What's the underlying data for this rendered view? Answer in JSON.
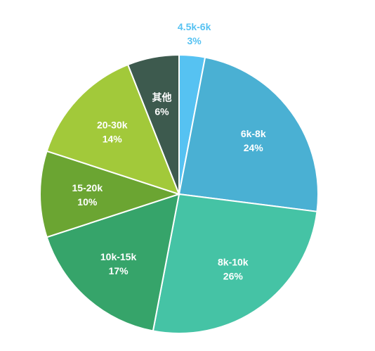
{
  "chart_data": {
    "type": "pie",
    "slices": [
      {
        "label": "4.5k-6k",
        "value": 3,
        "pct_label": "3%",
        "color": "#56c2f2"
      },
      {
        "label": "6k-8k",
        "value": 24,
        "pct_label": "24%",
        "color": "#4ab0d3"
      },
      {
        "label": "8k-10k",
        "value": 26,
        "pct_label": "26%",
        "color": "#45c3a5"
      },
      {
        "label": "10k-15k",
        "value": 17,
        "pct_label": "17%",
        "color": "#36a46a"
      },
      {
        "label": "15-20k",
        "value": 10,
        "pct_label": "10%",
        "color": "#6ba532"
      },
      {
        "label": "20-30k",
        "value": 14,
        "pct_label": "14%",
        "color": "#a2c93a"
      },
      {
        "label": "其他",
        "value": 6,
        "pct_label": "6%",
        "color": "#3d5a4e"
      }
    ]
  }
}
